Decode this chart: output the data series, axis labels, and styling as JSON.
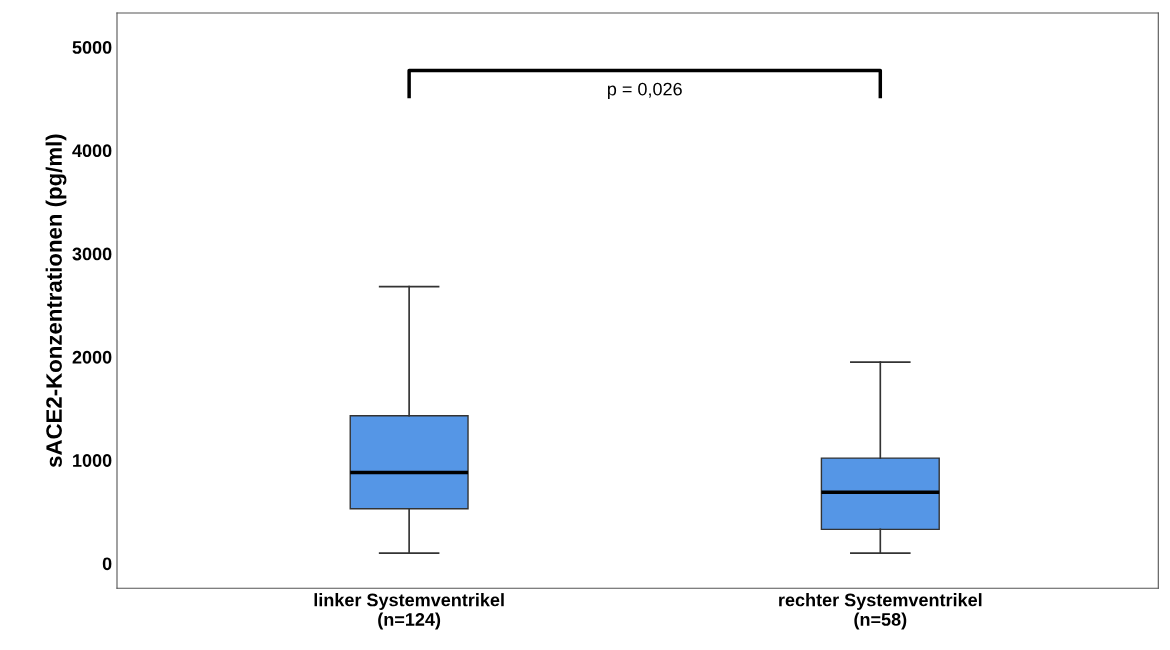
{
  "chart_data": {
    "type": "box",
    "ylabel": "sACE2-Konzentrationen (pg/ml)",
    "categories": [
      "linker Systemventrikel\n(n=124)",
      "rechter Systemventrikel\n(n=58)"
    ],
    "boxes": [
      {
        "low": 100,
        "q1": 530,
        "median": 880,
        "q3": 1430,
        "high": 2680
      },
      {
        "low": 100,
        "q1": 330,
        "median": 690,
        "q3": 1020,
        "high": 1950
      }
    ],
    "color": "#5596e6",
    "ylim": [
      -240,
      5330
    ],
    "yticks": [
      0,
      1000,
      2000,
      3000,
      4000,
      5000
    ],
    "grid": false,
    "annotations": [
      "p = 0,026"
    ]
  }
}
